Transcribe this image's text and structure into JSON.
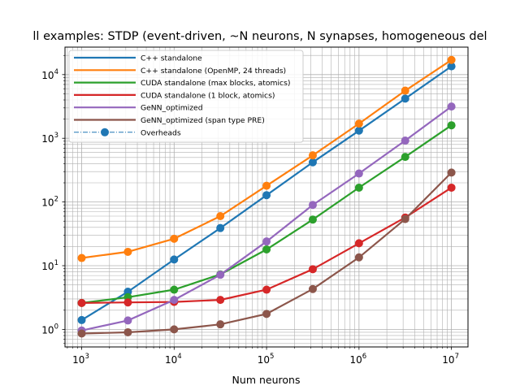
{
  "chart_data": {
    "type": "line",
    "title": "ll examples: STDP (event-driven, ~N neurons, N synapses, homogeneous del",
    "xlabel": "Num neurons",
    "ylabel": "",
    "xscale": "log",
    "yscale": "log",
    "xlim": [
      660,
      15100000
    ],
    "ylim": [
      0.53,
      27000
    ],
    "grid": true,
    "legend_position": "top-left",
    "x_ticks": [
      {
        "value": 1000,
        "base": "10",
        "exp": "3"
      },
      {
        "value": 10000,
        "base": "10",
        "exp": "4"
      },
      {
        "value": 100000,
        "base": "10",
        "exp": "5"
      },
      {
        "value": 1000000,
        "base": "10",
        "exp": "6"
      },
      {
        "value": 10000000,
        "base": "10",
        "exp": "7"
      }
    ],
    "y_ticks": [
      {
        "value": 1,
        "base": "10",
        "exp": "0"
      },
      {
        "value": 10,
        "base": "10",
        "exp": "1"
      },
      {
        "value": 100,
        "base": "10",
        "exp": "2"
      },
      {
        "value": 1000,
        "base": "10",
        "exp": "3"
      },
      {
        "value": 10000,
        "base": "10",
        "exp": "4"
      }
    ],
    "x": [
      1000,
      3162,
      10000,
      31623,
      100000,
      316228,
      1000000,
      3162278,
      10000000
    ],
    "series": [
      {
        "name": "C++ standalone",
        "color": "#1f77b4",
        "values": [
          1.4,
          3.9,
          12.5,
          39,
          128,
          420,
          1320,
          4200,
          13500
        ]
      },
      {
        "name": "C++ standalone (OpenMP, 24 threads)",
        "color": "#ff7f0e",
        "values": [
          13.2,
          16.5,
          26.5,
          60,
          180,
          540,
          1700,
          5600,
          17000
        ]
      },
      {
        "name": "CUDA standalone (max blocks, atomics)",
        "color": "#2ca02c",
        "values": [
          2.6,
          3.2,
          4.2,
          7.3,
          18,
          53,
          168,
          510,
          1600
        ]
      },
      {
        "name": "CUDA standalone (1 block, atomics)",
        "color": "#d62728",
        "values": [
          2.6,
          2.65,
          2.7,
          2.9,
          4.2,
          8.8,
          22.5,
          57,
          168
        ]
      },
      {
        "name": "GeNN_optimized",
        "color": "#9467bd",
        "values": [
          0.96,
          1.38,
          2.9,
          7.2,
          24,
          90,
          280,
          920,
          3150
        ]
      },
      {
        "name": "GeNN_optimized (span type PRE)",
        "color": "#8c564b",
        "values": [
          0.86,
          0.9,
          1.0,
          1.2,
          1.75,
          4.3,
          13.5,
          54,
          290
        ]
      }
    ],
    "legend": [
      {
        "label": "C++ standalone",
        "color": "#1f77b4",
        "style": "solid"
      },
      {
        "label": "C++ standalone (OpenMP, 24 threads)",
        "color": "#ff7f0e",
        "style": "solid"
      },
      {
        "label": "CUDA standalone (max blocks, atomics)",
        "color": "#2ca02c",
        "style": "solid"
      },
      {
        "label": "CUDA standalone (1 block, atomics)",
        "color": "#d62728",
        "style": "solid"
      },
      {
        "label": "GeNN_optimized",
        "color": "#9467bd",
        "style": "solid"
      },
      {
        "label": "GeNN_optimized (span type PRE)",
        "color": "#8c564b",
        "style": "solid"
      },
      {
        "label": "Overheads",
        "color": "#1f77b4",
        "style": "dashdot-marker"
      }
    ]
  }
}
